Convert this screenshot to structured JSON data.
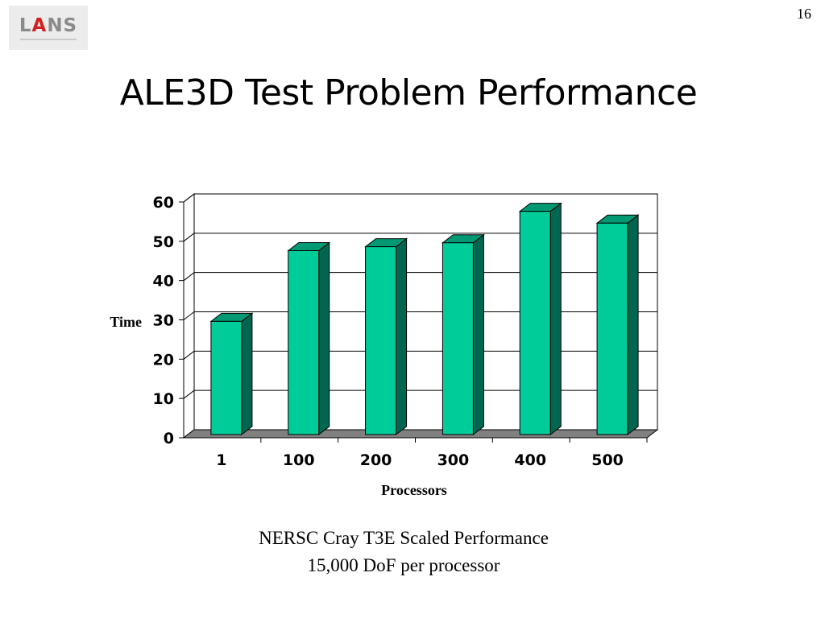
{
  "logo": {
    "prefix": "L",
    "accent": "A",
    "suffix": "NS"
  },
  "page_number": "16",
  "title": "ALE3D Test Problem Performance",
  "captions": [
    "NERSC Cray T3E Scaled Performance",
    "15,000 DoF per processor"
  ],
  "colors": {
    "bar_front": "#00cc99",
    "bar_side": "#006650",
    "bar_top": "#009973",
    "floor": "#808080"
  },
  "chart_data": {
    "type": "bar",
    "categories": [
      "1",
      "100",
      "200",
      "300",
      "400",
      "500"
    ],
    "values": [
      29,
      47,
      48,
      49,
      57,
      54
    ],
    "xlabel": "Processors",
    "ylabel": "Time",
    "ylim": [
      0,
      60
    ],
    "yticks": [
      "0",
      "10",
      "20",
      "30",
      "40",
      "50",
      "60"
    ],
    "grid": true,
    "legend": "none"
  }
}
